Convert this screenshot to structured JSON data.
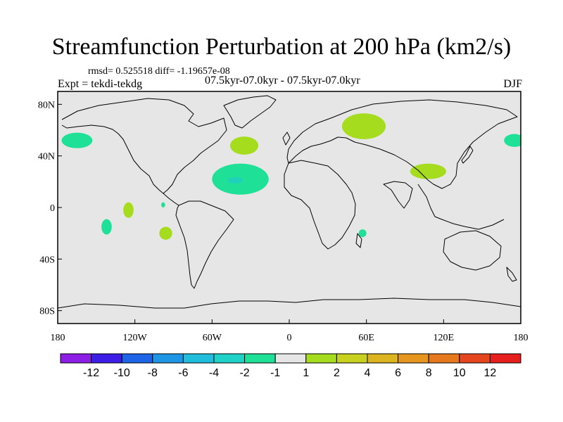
{
  "colors": {
    "background": "#e6e6e6",
    "positive_light": "#a6dc1e",
    "negative_light": "#1ee096",
    "negative_medium": "#1ed2b9",
    "coast": "#000000"
  },
  "chart_data": {
    "type": "contour-map",
    "title": "Streamfunction Perturbation at 200 hPa (km2/s)",
    "stats_label": "rmsd= 0.525518 diff= -1.19657e-08",
    "expt_label": "Expt = tekdi-tekdg",
    "runs_label": "07.5kyr-07.0kyr - 07.5kyr-07.0kyr",
    "season": "DJF",
    "projection": "cylindrical-equidistant",
    "lon_range": [
      -180,
      180
    ],
    "lat_range": [
      -90,
      90
    ],
    "x_ticks": [
      {
        "lon": -180,
        "label": "180"
      },
      {
        "lon": -120,
        "label": "120W"
      },
      {
        "lon": -60,
        "label": "60W"
      },
      {
        "lon": 0,
        "label": "0"
      },
      {
        "lon": 60,
        "label": "60E"
      },
      {
        "lon": 120,
        "label": "120E"
      },
      {
        "lon": 180,
        "label": "180"
      }
    ],
    "y_ticks": [
      {
        "lat": 80,
        "label": "80N"
      },
      {
        "lat": 40,
        "label": "40N"
      },
      {
        "lat": 0,
        "label": "0"
      },
      {
        "lat": -40,
        "label": "40S"
      },
      {
        "lat": -80,
        "label": "80S"
      }
    ],
    "colorbar": {
      "colors": [
        "#8c1ee6",
        "#3c1ee6",
        "#1e64e6",
        "#1e96e6",
        "#1ebedc",
        "#1ed2c8",
        "#1ee096",
        "#e6e6e6",
        "#a6dc1e",
        "#c8d21e",
        "#dcb41e",
        "#e6961e",
        "#e6781e",
        "#e6461e",
        "#e61e1e"
      ],
      "labels": [
        "-12",
        "-10",
        "-8",
        "-6",
        "-4",
        "-2",
        "-1",
        "1",
        "2",
        "4",
        "6",
        "8",
        "10",
        "12"
      ]
    },
    "anomalies": [
      {
        "name": "north-pacific-west",
        "lon": -165,
        "lat": 52,
        "rx": 12,
        "ry": 6,
        "value": -1
      },
      {
        "name": "north-pacific-east",
        "lon": 175,
        "lat": 52,
        "rx": 8,
        "ry": 5,
        "value": -1
      },
      {
        "name": "north-atlantic-mid",
        "lon": -35,
        "lat": 48,
        "rx": 11,
        "ry": 7,
        "value": 1
      },
      {
        "name": "subtropical-atlantic",
        "lon": -38,
        "lat": 22,
        "rx": 22,
        "ry": 12,
        "value": -1
      },
      {
        "name": "subtropical-atlantic-core",
        "lon": -42,
        "lat": 21,
        "rx": 6,
        "ry": 2.5,
        "value": -2
      },
      {
        "name": "siberia",
        "lon": 58,
        "lat": 63,
        "rx": 17,
        "ry": 10,
        "value": 1
      },
      {
        "name": "east-asia",
        "lon": 108,
        "lat": 28,
        "rx": 14,
        "ry": 6,
        "value": 1
      },
      {
        "name": "central-pacific-eq",
        "lon": -125,
        "lat": -2,
        "rx": 4,
        "ry": 6,
        "value": 1
      },
      {
        "name": "east-pacific-small",
        "lon": -98,
        "lat": 2,
        "rx": 1.5,
        "ry": 2,
        "value": -1
      },
      {
        "name": "south-pacific-west",
        "lon": -142,
        "lat": -15,
        "rx": 4,
        "ry": 6,
        "value": -1
      },
      {
        "name": "south-pacific-east",
        "lon": -96,
        "lat": -20,
        "rx": 5,
        "ry": 5,
        "value": 1
      },
      {
        "name": "madagascar-east",
        "lon": 57,
        "lat": -20,
        "rx": 3,
        "ry": 3,
        "value": -1
      }
    ]
  }
}
